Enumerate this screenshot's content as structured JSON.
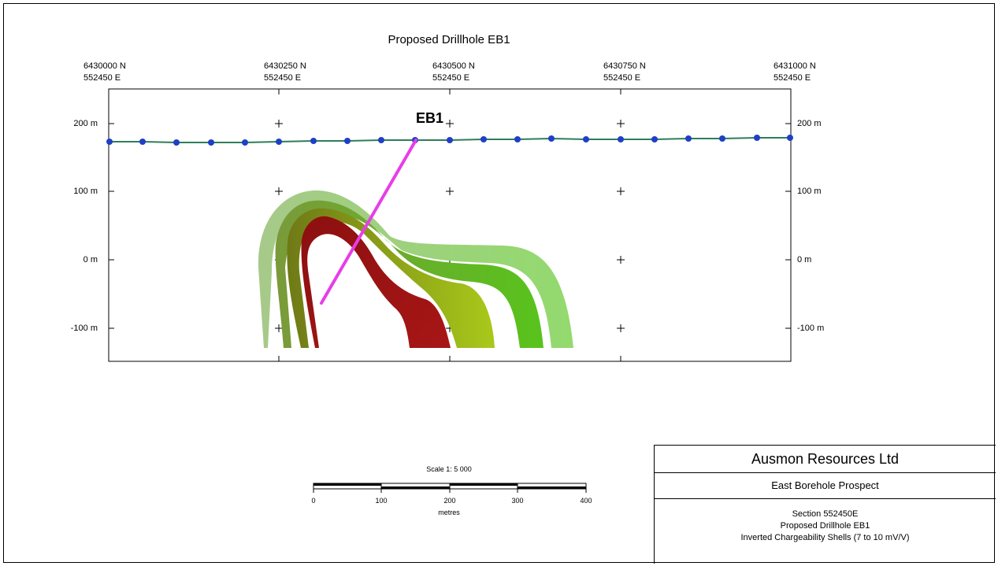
{
  "title": "Proposed Drillhole EB1",
  "coords": [
    {
      "n": "6430000 N",
      "e": "552450 E"
    },
    {
      "n": "6430250 N",
      "e": "552450 E"
    },
    {
      "n": "6430500 N",
      "e": "552450 E"
    },
    {
      "n": "6430750 N",
      "e": "552450 E"
    },
    {
      "n": "6431000 N",
      "e": "552450 E"
    }
  ],
  "elevations": [
    "200 m",
    "100 m",
    "0 m",
    "-100 m"
  ],
  "drillhole_label": "EB1",
  "scale": {
    "title": "Scale 1:  5 000",
    "ticks": [
      "0",
      "100",
      "200",
      "300",
      "400"
    ],
    "unit": "metres"
  },
  "title_block": {
    "company": "Ausmon Resources Ltd",
    "prospect": "East Borehole Prospect",
    "line1": "Section 552450E",
    "line2": "Proposed Drillhole EB1",
    "line3": "Inverted Chargeability Shells (7 to 10 mV/V)"
  },
  "colors": {
    "topography_line": "#2e7d5b",
    "topography_points": "#1f3fc8",
    "drillhole": "#e83de8",
    "shell_outer": "#8fd56a",
    "shell_mid": "#5bbf1e",
    "shell_inner": "#a3c21a",
    "shell_core": "#9b1010"
  }
}
